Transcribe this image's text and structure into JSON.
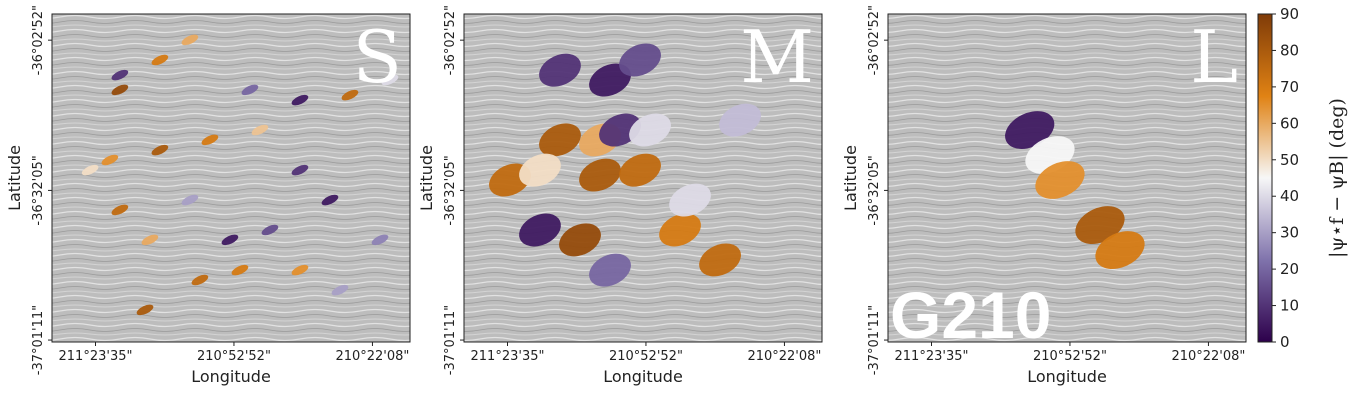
{
  "chart_data": [
    {
      "type": "scatter",
      "title": "S",
      "xlabel": "Longitude",
      "ylabel": "Latitude",
      "xlim": [
        211.554,
        210.23
      ],
      "ylim": [
        -37.026,
        -35.963
      ],
      "xticks": [
        {
          "value": 211.3931,
          "label": "211°23'35\""
        },
        {
          "value": 210.8811,
          "label": "210°52'52\""
        },
        {
          "value": 210.3689,
          "label": "210°22'08\""
        }
      ],
      "yticks": [
        {
          "value": -36.0478,
          "label": "-36°02'52\""
        },
        {
          "value": -36.5347,
          "label": "-36°32'05\""
        },
        {
          "value": -37.0197,
          "label": "-37°01'11\""
        }
      ],
      "x": [
        211.303,
        211.155,
        211.044,
        210.822,
        210.637,
        210.452,
        210.304,
        211.34,
        211.155,
        210.97,
        210.785,
        210.637,
        210.526,
        210.748,
        210.896,
        211.303,
        211.192,
        211.044,
        211.413,
        210.637,
        210.489,
        211.007,
        211.21,
        210.859,
        210.341,
        211.303
      ],
      "y": [
        -36.161,
        -36.112,
        -36.047,
        -36.209,
        -36.242,
        -36.226,
        -36.177,
        -36.436,
        -36.404,
        -36.371,
        -36.339,
        -36.469,
        -36.566,
        -36.663,
        -36.695,
        -36.598,
        -36.695,
        -36.566,
        -36.469,
        -36.793,
        -36.858,
        -36.825,
        -36.922,
        -36.793,
        -36.695,
        -36.209
      ],
      "values": [
        10,
        70,
        60,
        20,
        5,
        75,
        40,
        65,
        80,
        70,
        55,
        10,
        5,
        15,
        5,
        75,
        60,
        30,
        50,
        65,
        30,
        75,
        80,
        70,
        25,
        85
      ]
    },
    {
      "type": "scatter",
      "title": "M",
      "xlabel": "Longitude",
      "ylabel": "Latitude",
      "xlim": [
        211.554,
        210.23
      ],
      "ylim": [
        -37.026,
        -35.963
      ],
      "xticks": [
        {
          "value": 211.3931,
          "label": "211°23'35\""
        },
        {
          "value": 210.8811,
          "label": "210°52'52\""
        },
        {
          "value": 210.3689,
          "label": "210°22'08\""
        }
      ],
      "yticks": [
        {
          "value": -36.0478,
          "label": "-36°02'52\""
        },
        {
          "value": -36.5347,
          "label": "-36°32'05\""
        },
        {
          "value": -37.0197,
          "label": "-37°01'11\""
        }
      ],
      "x": [
        211.199,
        211.014,
        210.903,
        211.051,
        211.199,
        210.977,
        210.866,
        211.384,
        211.273,
        211.051,
        210.903,
        211.273,
        211.125,
        210.755,
        210.607,
        210.718,
        211.014,
        210.533
      ],
      "y": [
        -36.145,
        -36.177,
        -36.112,
        -36.371,
        -36.371,
        -36.339,
        -36.339,
        -36.501,
        -36.469,
        -36.485,
        -36.469,
        -36.663,
        -36.695,
        -36.663,
        -36.76,
        -36.566,
        -36.793,
        -36.307
      ],
      "values": [
        10,
        5,
        15,
        60,
        80,
        10,
        40,
        75,
        50,
        80,
        75,
        5,
        85,
        70,
        75,
        40,
        20,
        35
      ]
    },
    {
      "type": "scatter",
      "title": "L",
      "annotation": "G210",
      "xlabel": "Longitude",
      "ylabel": "Latitude",
      "xlim": [
        211.554,
        210.23
      ],
      "ylim": [
        -37.026,
        -35.963
      ],
      "xticks": [
        {
          "value": 211.3931,
          "label": "211°23'35\""
        },
        {
          "value": 210.8811,
          "label": "210°52'52\""
        },
        {
          "value": 210.3689,
          "label": "210°22'08\""
        }
      ],
      "yticks": [
        {
          "value": -36.0478,
          "label": "-36°02'52\""
        },
        {
          "value": -36.5347,
          "label": "-36°32'05\""
        },
        {
          "value": -37.0197,
          "label": "-37°01'11\""
        }
      ],
      "x": [
        211.03,
        210.955,
        210.918,
        210.77,
        210.696
      ],
      "y": [
        -36.339,
        -36.42,
        -36.501,
        -36.647,
        -36.728
      ],
      "values": [
        5,
        45,
        65,
        80,
        70
      ]
    },
    {
      "type": "colorbar",
      "label": "|ψ⋆f − ψB| (deg)",
      "ylim": [
        0,
        90
      ],
      "yticks": [
        0,
        10,
        20,
        30,
        40,
        50,
        60,
        70,
        80,
        90
      ],
      "colors": [
        "#2d004b",
        "#8073ac",
        "#f7f7f7",
        "#e08214",
        "#7f3b08"
      ]
    }
  ]
}
